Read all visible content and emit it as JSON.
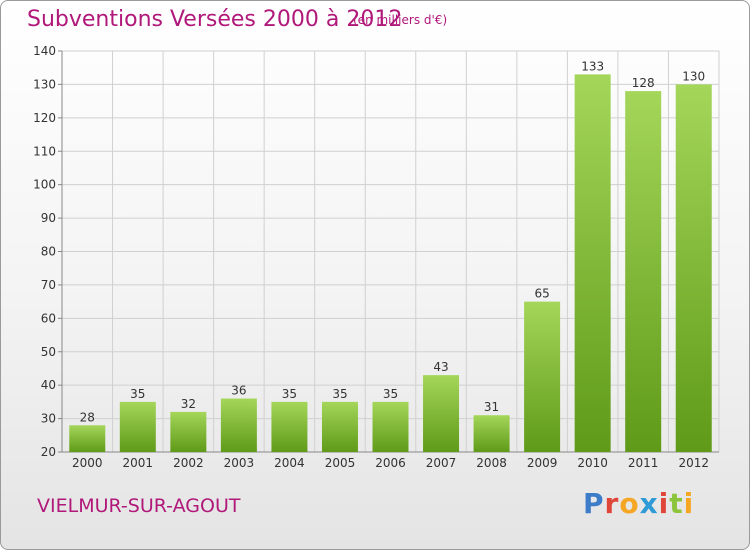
{
  "header": {
    "title": "Subventions Versées 2000 à 2012",
    "subtitle": "(en milliers d'€)"
  },
  "footer": {
    "commune": "VIELMUR-SUR-AGOUT",
    "logo_text": "Proxiti",
    "logo_colors": [
      "#3d7cc9",
      "#e0453a",
      "#f5a623",
      "#2e9ad6",
      "#e0453a",
      "#8cc43c",
      "#f5a623"
    ]
  },
  "colors": {
    "accent": "#b0187a",
    "bar_light": "#a4d65a",
    "bar_dark": "#5f9a18",
    "grid": "#d0d0d0"
  },
  "chart_data": {
    "type": "bar",
    "title": "Subventions Versées 2000 à 2012",
    "subtitle": "(en milliers d'€)",
    "categories": [
      "2000",
      "2001",
      "2002",
      "2003",
      "2004",
      "2005",
      "2006",
      "2007",
      "2008",
      "2009",
      "2010",
      "2011",
      "2012"
    ],
    "values": [
      28,
      35,
      32,
      36,
      35,
      35,
      35,
      43,
      31,
      65,
      133,
      128,
      130
    ],
    "ylim": [
      20,
      140
    ],
    "yticks": [
      20,
      30,
      40,
      50,
      60,
      70,
      80,
      90,
      100,
      110,
      120,
      130,
      140
    ],
    "grid": true,
    "xlabel": "",
    "ylabel": ""
  }
}
